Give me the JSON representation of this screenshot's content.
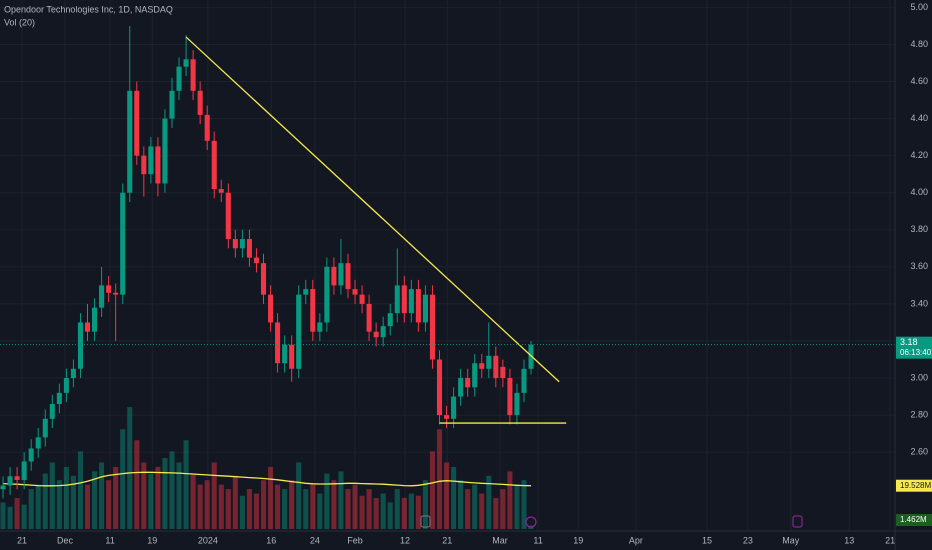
{
  "chart_data": {
    "type": "candlestick",
    "title": "Opendoor Technologies Inc, 1D, NASDAQ",
    "up_color": "#089981",
    "down_color": "#f23645",
    "open": [
      2.4,
      2.42,
      2.47,
      2.45,
      2.55,
      2.62,
      2.68,
      2.78,
      2.86,
      2.92,
      3.0,
      3.05,
      3.3,
      3.25,
      3.38,
      3.5,
      3.46,
      3.45,
      4.0,
      4.55,
      4.2,
      4.1,
      4.25,
      4.05,
      4.4,
      4.55,
      4.68,
      4.72,
      4.55,
      4.42,
      4.28,
      4.02,
      4.0,
      3.75,
      3.7,
      3.75,
      3.65,
      3.62,
      3.45,
      3.3,
      3.08,
      3.18,
      3.05,
      3.45,
      3.48,
      3.25,
      3.3,
      3.6,
      3.5,
      3.62,
      3.48,
      3.45,
      3.4,
      3.25,
      3.22,
      3.28,
      3.35,
      3.5,
      3.35,
      3.48,
      3.3,
      3.45,
      3.1,
      2.8,
      2.78,
      2.9,
      3.0,
      2.95,
      3.08,
      3.05,
      3.12,
      3.06,
      3.0,
      2.8,
      2.92,
      3.05
    ],
    "high": [
      2.47,
      2.52,
      2.52,
      2.6,
      2.67,
      2.73,
      2.83,
      2.91,
      2.97,
      3.05,
      3.1,
      3.35,
      3.4,
      3.43,
      3.6,
      3.55,
      3.51,
      4.05,
      4.9,
      4.6,
      4.25,
      4.3,
      4.3,
      4.45,
      4.62,
      4.73,
      4.85,
      4.77,
      4.6,
      4.47,
      4.33,
      4.07,
      4.05,
      3.8,
      3.8,
      3.8,
      3.7,
      3.67,
      3.5,
      3.35,
      3.23,
      3.23,
      3.5,
      3.53,
      3.53,
      3.35,
      3.65,
      3.65,
      3.75,
      3.67,
      3.53,
      3.5,
      3.45,
      3.3,
      3.33,
      3.4,
      3.7,
      3.55,
      3.53,
      3.53,
      3.5,
      3.5,
      3.15,
      2.85,
      2.95,
      3.05,
      3.05,
      3.13,
      3.13,
      3.3,
      3.17,
      3.1,
      3.05,
      2.97,
      3.1,
      3.2
    ],
    "low": [
      2.35,
      2.37,
      2.4,
      2.4,
      2.5,
      2.57,
      2.63,
      2.73,
      2.81,
      2.87,
      2.95,
      3.0,
      3.2,
      3.2,
      3.33,
      3.41,
      3.2,
      3.4,
      3.95,
      4.15,
      3.98,
      4.05,
      3.98,
      4.0,
      4.35,
      4.5,
      4.63,
      4.5,
      4.37,
      4.23,
      3.97,
      3.95,
      3.7,
      3.65,
      3.65,
      3.6,
      3.57,
      3.4,
      3.25,
      3.03,
      3.03,
      2.98,
      3.0,
      3.4,
      3.2,
      3.2,
      3.25,
      3.45,
      3.45,
      3.43,
      3.4,
      3.35,
      3.2,
      3.17,
      3.17,
      3.23,
      3.3,
      3.3,
      3.3,
      3.25,
      3.25,
      3.05,
      2.75,
      2.73,
      2.73,
      2.85,
      2.9,
      2.9,
      3.0,
      3.0,
      2.95,
      2.95,
      2.75,
      2.75,
      2.87,
      3.02
    ],
    "close": [
      2.42,
      2.47,
      2.45,
      2.55,
      2.62,
      2.68,
      2.78,
      2.86,
      2.92,
      3.0,
      3.05,
      3.3,
      3.25,
      3.38,
      3.5,
      3.46,
      3.45,
      4.0,
      4.55,
      4.2,
      4.1,
      4.25,
      4.05,
      4.4,
      4.55,
      4.68,
      4.72,
      4.55,
      4.42,
      4.28,
      4.02,
      4.0,
      3.75,
      3.7,
      3.75,
      3.65,
      3.62,
      3.45,
      3.3,
      3.08,
      3.18,
      3.05,
      3.45,
      3.48,
      3.25,
      3.3,
      3.6,
      3.5,
      3.62,
      3.48,
      3.45,
      3.4,
      3.25,
      3.22,
      3.28,
      3.35,
      3.5,
      3.35,
      3.48,
      3.3,
      3.45,
      3.1,
      2.8,
      2.78,
      2.9,
      3.0,
      2.95,
      3.08,
      3.05,
      3.12,
      3.0,
      3.0,
      2.8,
      2.92,
      3.05,
      3.18
    ],
    "countdown": "06:13:40",
    "volume": {
      "values": [
        12,
        10,
        14,
        11,
        18,
        20,
        25,
        30,
        22,
        28,
        24,
        35,
        20,
        26,
        30,
        22,
        28,
        45,
        55,
        40,
        30,
        25,
        28,
        32,
        35,
        30,
        40,
        25,
        20,
        22,
        30,
        20,
        18,
        24,
        15,
        18,
        16,
        22,
        28,
        20,
        18,
        22,
        30,
        18,
        20,
        16,
        25,
        22,
        26,
        18,
        20,
        15,
        18,
        14,
        16,
        12,
        18,
        14,
        16,
        15,
        22,
        35,
        45,
        30,
        28,
        22,
        18,
        20,
        16,
        24,
        14,
        18,
        26,
        20,
        22,
        1.462
      ],
      "last_label": "1.462M",
      "ylim": [
        0,
        60
      ]
    },
    "vol_ma": {
      "name": "Vol (20)",
      "color": "#f5e94c",
      "values": [
        20.5,
        20.3,
        20.2,
        20.0,
        19.8,
        19.6,
        19.5,
        19.5,
        19.6,
        19.8,
        20.2,
        20.8,
        21.5,
        22.5,
        23.5,
        24.2,
        24.6,
        25.0,
        25.3,
        25.5,
        25.6,
        25.6,
        25.5,
        25.4,
        25.3,
        25.2,
        25.0,
        24.8,
        24.6,
        24.4,
        24.2,
        24.0,
        23.8,
        23.6,
        23.4,
        23.2,
        23.0,
        22.8,
        22.5,
        22.2,
        21.8,
        21.4,
        21.0,
        20.6,
        20.4,
        20.3,
        20.3,
        20.4,
        20.5,
        20.6,
        20.6,
        20.5,
        20.4,
        20.3,
        20.2,
        20.0,
        19.8,
        19.6,
        19.5,
        19.7,
        20.2,
        20.8,
        21.5,
        21.8,
        21.6,
        21.3,
        21.0,
        20.8,
        20.6,
        20.5,
        20.3,
        20.1,
        19.9,
        19.7,
        19.6,
        19.528
      ],
      "last_label": "19.528M"
    },
    "trendlines": [
      {
        "color": "#f5e94c",
        "x": [
          26,
          79
        ],
        "y": [
          4.84,
          2.98
        ]
      },
      {
        "color": "#f5e94c",
        "x": [
          62,
          80
        ],
        "y": [
          2.757,
          2.757
        ]
      }
    ],
    "xlim": [
      -0.43,
      126.7
    ],
    "xticks": [
      {
        "value": 2.7,
        "label": "21"
      },
      {
        "value": 8.8,
        "label": "Dec"
      },
      {
        "value": 15.2,
        "label": "11"
      },
      {
        "value": 21.2,
        "label": "19"
      },
      {
        "value": 29.1,
        "label": "2024"
      },
      {
        "value": 38.1,
        "label": "16"
      },
      {
        "value": 44.3,
        "label": "24"
      },
      {
        "value": 50,
        "label": "Feb"
      },
      {
        "value": 57.1,
        "label": "12"
      },
      {
        "value": 63.1,
        "label": "21"
      },
      {
        "value": 70.6,
        "label": "Mar"
      },
      {
        "value": 76,
        "label": "11"
      },
      {
        "value": 81.7,
        "label": "19"
      },
      {
        "value": 89.9,
        "label": "Apr"
      },
      {
        "value": 100,
        "label": "15"
      },
      {
        "value": 105.8,
        "label": "23"
      },
      {
        "value": 111.9,
        "label": "May"
      },
      {
        "value": 120.2,
        "label": "13"
      },
      {
        "value": 126,
        "label": "21"
      }
    ],
    "ylim": [
      2.18,
      5.04
    ],
    "yticks": [
      {
        "value": 2.6,
        "label": "2.60"
      },
      {
        "value": 2.8,
        "label": "2.80"
      },
      {
        "value": 3.0,
        "label": "3.00"
      },
      {
        "value": 3.2,
        "label": "3.20"
      },
      {
        "value": 3.4,
        "label": "3.40"
      },
      {
        "value": 3.6,
        "label": "3.60"
      },
      {
        "value": 3.8,
        "label": "3.80"
      },
      {
        "value": 4.0,
        "label": "4.00"
      },
      {
        "value": 4.2,
        "label": "4.20"
      },
      {
        "value": 4.4,
        "label": "4.40"
      },
      {
        "value": 4.6,
        "label": "4.60"
      },
      {
        "value": 4.8,
        "label": "4.80"
      },
      {
        "value": 5.0,
        "label": "5.00"
      }
    ],
    "grid": true
  }
}
